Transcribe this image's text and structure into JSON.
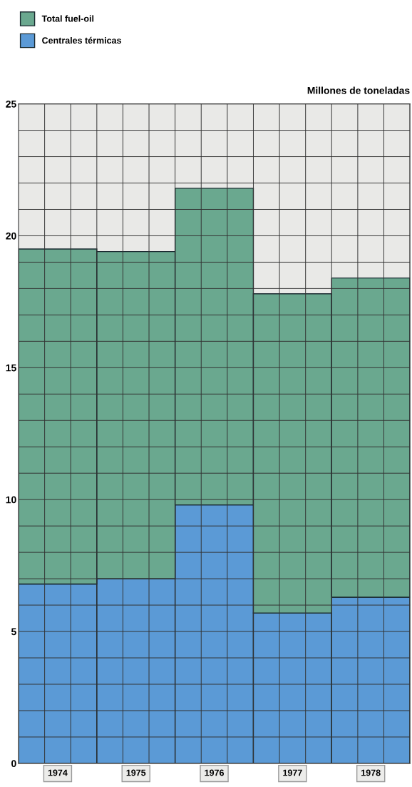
{
  "chart_data": {
    "type": "bar",
    "stacked": true,
    "ylabel": "Millones de toneladas",
    "categories": [
      "1974",
      "1975",
      "1976",
      "1977",
      "1978"
    ],
    "series": [
      {
        "name": "Centrales térmicas",
        "color": "#5b9ad6",
        "values": [
          6.8,
          7.0,
          9.8,
          5.7,
          6.3
        ]
      },
      {
        "name": "Total fuel-oil",
        "color": "#6aa88f",
        "values": [
          12.7,
          12.4,
          12.0,
          12.1,
          12.1
        ]
      }
    ],
    "ylim": [
      0,
      25
    ],
    "yticks": [
      0,
      {
        "value": 1,
        "label": null
      },
      {
        "value": 2,
        "label": null
      },
      {
        "value": 3,
        "label": null
      },
      {
        "value": 4,
        "label": null
      },
      5,
      {
        "value": 6,
        "label": null
      },
      {
        "value": 7,
        "label": null
      },
      {
        "value": 8,
        "label": null
      },
      {
        "value": 9,
        "label": null
      },
      10,
      {
        "value": 11,
        "label": null
      },
      {
        "value": 12,
        "label": null
      },
      {
        "value": 13,
        "label": null
      },
      {
        "value": 14,
        "label": null
      },
      15,
      {
        "value": 16,
        "label": null
      },
      {
        "value": 17,
        "label": null
      },
      {
        "value": 18,
        "label": null
      },
      {
        "value": 19,
        "label": null
      },
      20,
      {
        "value": 21,
        "label": null
      },
      {
        "value": 22,
        "label": null
      },
      {
        "value": 23,
        "label": null
      },
      {
        "value": 24,
        "label": null
      },
      25
    ],
    "grid": true,
    "legend": "top left"
  }
}
